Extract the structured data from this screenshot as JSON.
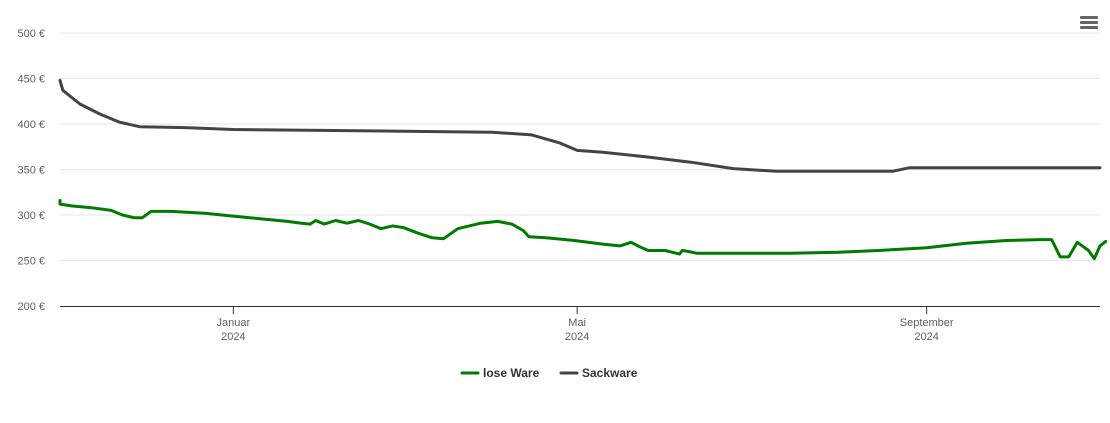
{
  "chart_data": {
    "type": "line",
    "title": "",
    "xlabel": "",
    "ylabel": "",
    "ylim": [
      200,
      500
    ],
    "yticks": [
      {
        "value": 200,
        "label": "200 €"
      },
      {
        "value": 250,
        "label": "250 €"
      },
      {
        "value": 300,
        "label": "300 €"
      },
      {
        "value": 350,
        "label": "350 €"
      },
      {
        "value": 400,
        "label": "400 €"
      },
      {
        "value": 450,
        "label": "450 €"
      },
      {
        "value": 500,
        "label": "500 €"
      }
    ],
    "xlim": [
      "2023-11-01",
      "2024-11-01"
    ],
    "xticks": [
      {
        "date": "2024-01-01",
        "line1": "Januar",
        "line2": "2024"
      },
      {
        "date": "2024-05-01",
        "line1": "Mai",
        "line2": "2024"
      },
      {
        "date": "2024-09-01",
        "line1": "September",
        "line2": "2024"
      }
    ],
    "grid": true,
    "legend": "bottom-center",
    "series": [
      {
        "name": "lose Ware",
        "color": "#007a00",
        "points": [
          [
            "2023-11-01",
            316
          ],
          [
            "2023-11-01",
            312
          ],
          [
            "2023-11-05",
            310
          ],
          [
            "2023-11-12",
            308
          ],
          [
            "2023-11-19",
            305
          ],
          [
            "2023-11-23",
            300
          ],
          [
            "2023-11-27",
            297
          ],
          [
            "2023-11-30",
            297
          ],
          [
            "2023-12-03",
            304
          ],
          [
            "2023-12-10",
            304
          ],
          [
            "2023-12-22",
            302
          ],
          [
            "2023-12-31",
            299
          ],
          [
            "2024-01-10",
            296
          ],
          [
            "2024-01-20",
            293
          ],
          [
            "2024-01-25",
            291
          ],
          [
            "2024-01-28",
            290
          ],
          [
            "2024-01-30",
            294
          ],
          [
            "2024-02-02",
            290
          ],
          [
            "2024-02-06",
            294
          ],
          [
            "2024-02-10",
            291
          ],
          [
            "2024-02-14",
            294
          ],
          [
            "2024-02-18",
            290
          ],
          [
            "2024-02-22",
            285
          ],
          [
            "2024-02-26",
            288
          ],
          [
            "2024-03-01",
            286
          ],
          [
            "2024-03-06",
            280
          ],
          [
            "2024-03-11",
            275
          ],
          [
            "2024-03-15",
            274
          ],
          [
            "2024-03-20",
            285
          ],
          [
            "2024-03-28",
            291
          ],
          [
            "2024-04-03",
            293
          ],
          [
            "2024-04-08",
            290
          ],
          [
            "2024-04-12",
            283
          ],
          [
            "2024-04-14",
            276
          ],
          [
            "2024-04-20",
            275
          ],
          [
            "2024-04-30",
            272
          ],
          [
            "2024-05-10",
            268
          ],
          [
            "2024-05-16",
            266
          ],
          [
            "2024-05-20",
            270
          ],
          [
            "2024-05-23",
            265
          ],
          [
            "2024-05-26",
            261
          ],
          [
            "2024-06-01",
            261
          ],
          [
            "2024-06-06",
            257
          ],
          [
            "2024-06-07",
            261
          ],
          [
            "2024-06-09",
            260
          ],
          [
            "2024-06-12",
            258
          ],
          [
            "2024-07-01",
            258
          ],
          [
            "2024-07-15",
            258
          ],
          [
            "2024-08-01",
            259
          ],
          [
            "2024-08-15",
            261
          ],
          [
            "2024-09-01",
            264
          ],
          [
            "2024-09-15",
            269
          ],
          [
            "2024-09-29",
            272
          ],
          [
            "2024-10-11",
            273
          ],
          [
            "2024-10-15",
            273
          ],
          [
            "2024-10-18",
            254
          ],
          [
            "2024-10-21",
            254
          ],
          [
            "2024-10-24",
            270
          ],
          [
            "2024-10-28",
            261
          ],
          [
            "2024-10-30",
            252
          ],
          [
            "2024-11-01",
            266
          ],
          [
            "2024-11-03",
            271
          ]
        ]
      },
      {
        "name": "Sackware",
        "color": "#444444",
        "points": [
          [
            "2023-11-01",
            448
          ],
          [
            "2023-11-02",
            437
          ],
          [
            "2023-11-08",
            422
          ],
          [
            "2023-11-15",
            411
          ],
          [
            "2023-11-22",
            402
          ],
          [
            "2023-11-29",
            397
          ],
          [
            "2023-12-15",
            396
          ],
          [
            "2024-01-01",
            394
          ],
          [
            "2024-02-01",
            393
          ],
          [
            "2024-03-01",
            392
          ],
          [
            "2024-04-01",
            391
          ],
          [
            "2024-04-15",
            388
          ],
          [
            "2024-04-25",
            379
          ],
          [
            "2024-05-01",
            371
          ],
          [
            "2024-05-10",
            369
          ],
          [
            "2024-05-25",
            364
          ],
          [
            "2024-06-10",
            358
          ],
          [
            "2024-06-25",
            351
          ],
          [
            "2024-07-10",
            348
          ],
          [
            "2024-08-01",
            348
          ],
          [
            "2024-08-20",
            348
          ],
          [
            "2024-08-26",
            352
          ],
          [
            "2024-09-15",
            352
          ],
          [
            "2024-10-15",
            352
          ],
          [
            "2024-11-01",
            352
          ]
        ]
      }
    ]
  },
  "menu": {
    "icon": "hamburger-menu-icon"
  }
}
